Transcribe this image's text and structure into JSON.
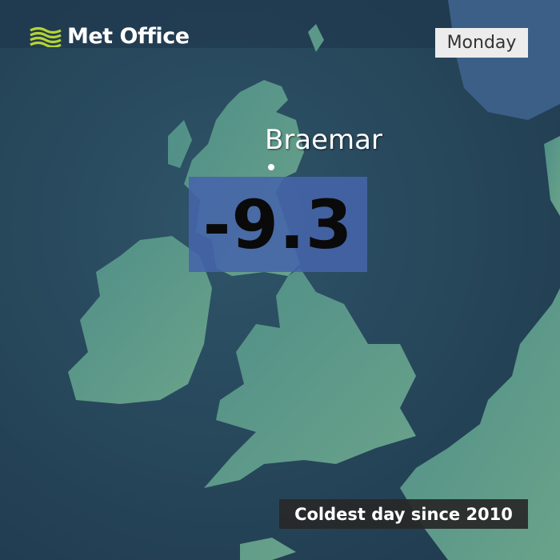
{
  "brand": {
    "name": "Met Office",
    "icon": "met-office-waves-logo",
    "logo_color": "#b5d334"
  },
  "day": "Monday",
  "location": {
    "name": "Braemar"
  },
  "temperature": {
    "value": "-9.3",
    "box_color": "#4664aa"
  },
  "banner": "Coldest day since 2010",
  "colors": {
    "sea": "#2a4a5e",
    "land": "#5c9a8a"
  }
}
